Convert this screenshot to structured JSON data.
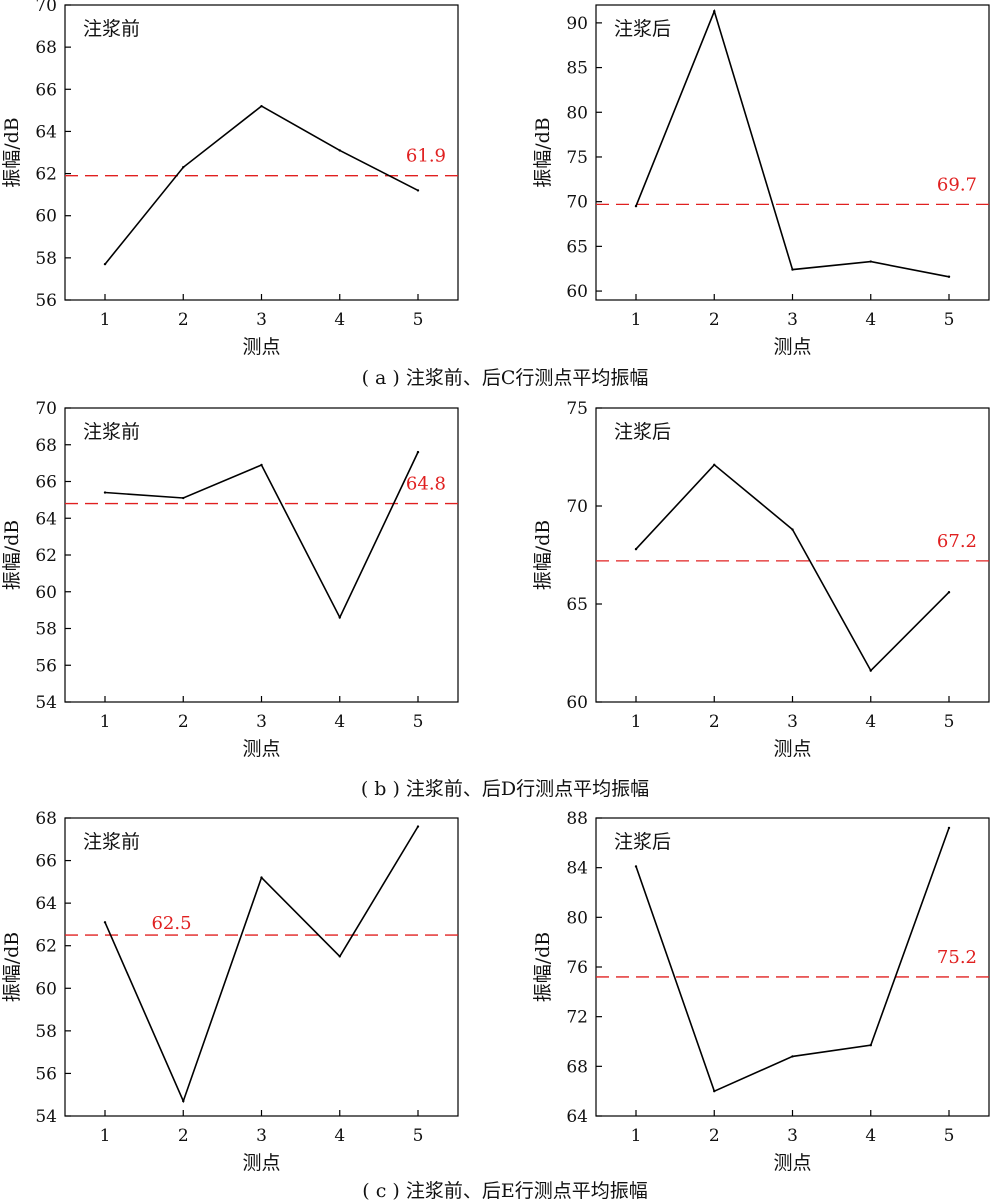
{
  "figure": {
    "captions": [
      "( a ) 注浆前、后C行测点平均振幅",
      "( b ) 注浆前、后D行测点平均振幅",
      "( c ) 注浆前、后E行测点平均振幅"
    ]
  },
  "colors": {
    "line": "#000000",
    "mean": "#e02020",
    "axis": "#000000"
  },
  "chart_data": [
    {
      "type": "line",
      "row": "C",
      "title": "注浆前",
      "xlabel": "测点",
      "ylabel": "振幅/dB",
      "x": [
        1,
        2,
        3,
        4,
        5
      ],
      "values": [
        57.7,
        62.3,
        65.2,
        63.1,
        61.2
      ],
      "mean": 61.9,
      "mean_label": "61.9",
      "ylim": [
        56,
        70
      ],
      "yticks": [
        56,
        58,
        60,
        62,
        64,
        66,
        68,
        70
      ],
      "xticks": [
        1,
        2,
        3,
        4,
        5
      ],
      "grid": false,
      "legend": "none"
    },
    {
      "type": "line",
      "row": "C",
      "title": "注浆后",
      "xlabel": "测点",
      "ylabel": "振幅/dB",
      "x": [
        1,
        2,
        3,
        4,
        5
      ],
      "values": [
        69.5,
        91.3,
        62.4,
        63.3,
        61.6
      ],
      "mean": 69.7,
      "mean_label": "69.7",
      "ylim": [
        59,
        92
      ],
      "yticks": [
        60,
        65,
        70,
        75,
        80,
        85,
        90
      ],
      "xticks": [
        1,
        2,
        3,
        4,
        5
      ],
      "grid": false,
      "legend": "none"
    },
    {
      "type": "line",
      "row": "D",
      "title": "注浆前",
      "xlabel": "测点",
      "ylabel": "振幅/dB",
      "x": [
        1,
        2,
        3,
        4,
        5
      ],
      "values": [
        65.4,
        65.1,
        66.9,
        58.6,
        67.6
      ],
      "mean": 64.8,
      "mean_label": "64.8",
      "ylim": [
        54,
        70
      ],
      "yticks": [
        54,
        56,
        58,
        60,
        62,
        64,
        66,
        68,
        70
      ],
      "xticks": [
        1,
        2,
        3,
        4,
        5
      ],
      "grid": false,
      "legend": "none"
    },
    {
      "type": "line",
      "row": "D",
      "title": "注浆后",
      "xlabel": "测点",
      "ylabel": "振幅/dB",
      "x": [
        1,
        2,
        3,
        4,
        5
      ],
      "values": [
        67.8,
        72.1,
        68.8,
        61.6,
        65.6
      ],
      "mean": 67.2,
      "mean_label": "67.2",
      "ylim": [
        60,
        75
      ],
      "yticks": [
        60,
        65,
        70,
        75
      ],
      "xticks": [
        1,
        2,
        3,
        4,
        5
      ],
      "grid": false,
      "legend": "none"
    },
    {
      "type": "line",
      "row": "E",
      "title": "注浆前",
      "xlabel": "测点",
      "ylabel": "振幅/dB",
      "x": [
        1,
        2,
        3,
        4,
        5
      ],
      "values": [
        63.1,
        54.7,
        65.2,
        61.5,
        67.6
      ],
      "mean": 62.5,
      "mean_label": "62.5",
      "ylim": [
        54,
        68
      ],
      "yticks": [
        54,
        56,
        58,
        60,
        62,
        64,
        66,
        68
      ],
      "xticks": [
        1,
        2,
        3,
        4,
        5
      ],
      "grid": false,
      "legend": "none"
    },
    {
      "type": "line",
      "row": "E",
      "title": "注浆后",
      "xlabel": "测点",
      "ylabel": "振幅/dB",
      "x": [
        1,
        2,
        3,
        4,
        5
      ],
      "values": [
        84.1,
        66.0,
        68.8,
        69.7,
        87.2
      ],
      "mean": 75.2,
      "mean_label": "75.2",
      "ylim": [
        64,
        88
      ],
      "yticks": [
        64,
        68,
        72,
        76,
        80,
        84,
        88
      ],
      "xticks": [
        1,
        2,
        3,
        4,
        5
      ],
      "grid": false,
      "legend": "none"
    }
  ]
}
